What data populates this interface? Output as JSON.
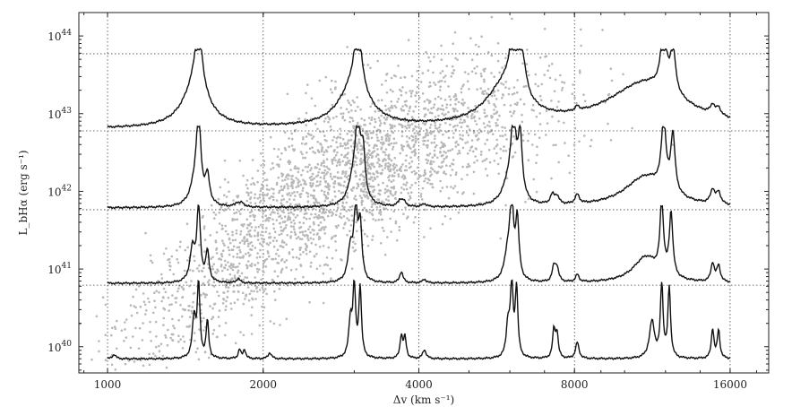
{
  "chart_data": {
    "type": "scatter",
    "title": "",
    "xlabel": "Δv (km s⁻¹)",
    "ylabel": "L_bHα (erg s⁻¹)",
    "x_scale": "log",
    "y_scale": "log",
    "xlim": [
      880,
      19000
    ],
    "ylim": [
      4.6e+39,
      2e+44
    ],
    "x_ticks": [
      1000,
      2000,
      4000,
      8000,
      16000
    ],
    "x_tick_labels": [
      "1000",
      "2000",
      "4000",
      "8000",
      "16000"
    ],
    "y_ticks": [
      1e+40,
      1e+41,
      1e+42,
      1e+43,
      1e+44
    ],
    "y_tick_labels": [
      {
        "base": "10",
        "exp": "40"
      },
      {
        "base": "10",
        "exp": "41"
      },
      {
        "base": "10",
        "exp": "42"
      },
      {
        "base": "10",
        "exp": "43"
      },
      {
        "base": "10",
        "exp": "44"
      }
    ],
    "grid": true,
    "scatter": {
      "color": "#b8b8b8",
      "description_points": [
        {
          "x": 1500,
          "y": 6e+40
        },
        {
          "x": 2000,
          "y": 3e+41
        },
        {
          "x": 2500,
          "y": 1e+42
        },
        {
          "x": 3000,
          "y": 2e+42
        },
        {
          "x": 3500,
          "y": 3e+42
        },
        {
          "x": 4000,
          "y": 5e+42
        },
        {
          "x": 5000,
          "y": 8e+42
        },
        {
          "x": 6000,
          "y": 1e+43
        },
        {
          "x": 8000,
          "y": 2e+43
        }
      ]
    },
    "spectra": [
      {
        "name": "",
        "ybase": 6.6e+39,
        "ytop": 6.2e+40,
        "peaks": [
          {
            "x": 1030,
            "h": 0.06,
            "w": 0.004
          },
          {
            "x": 1470,
            "h": 0.55,
            "w": 0.004
          },
          {
            "x": 1500,
            "h": 1.0,
            "w": 0.003
          },
          {
            "x": 1560,
            "h": 0.5,
            "w": 0.003
          },
          {
            "x": 1800,
            "h": 0.12,
            "w": 0.003
          },
          {
            "x": 1840,
            "h": 0.12,
            "w": 0.003
          },
          {
            "x": 2060,
            "h": 0.08,
            "w": 0.004
          },
          {
            "x": 2950,
            "h": 0.5,
            "w": 0.004
          },
          {
            "x": 3000,
            "h": 0.95,
            "w": 0.003
          },
          {
            "x": 3080,
            "h": 0.95,
            "w": 0.003
          },
          {
            "x": 3700,
            "h": 0.3,
            "w": 0.003
          },
          {
            "x": 3760,
            "h": 0.28,
            "w": 0.003
          },
          {
            "x": 4100,
            "h": 0.12,
            "w": 0.004
          },
          {
            "x": 5950,
            "h": 0.45,
            "w": 0.004
          },
          {
            "x": 6050,
            "h": 1.0,
            "w": 0.003
          },
          {
            "x": 6180,
            "h": 0.95,
            "w": 0.003
          },
          {
            "x": 7300,
            "h": 0.38,
            "w": 0.003
          },
          {
            "x": 7400,
            "h": 0.33,
            "w": 0.003
          },
          {
            "x": 8100,
            "h": 0.22,
            "w": 0.004
          },
          {
            "x": 11300,
            "h": 0.5,
            "w": 0.006
          },
          {
            "x": 11800,
            "h": 1.0,
            "w": 0.003
          },
          {
            "x": 12200,
            "h": 0.95,
            "w": 0.003
          },
          {
            "x": 14800,
            "h": 0.4,
            "w": 0.003
          },
          {
            "x": 15200,
            "h": 0.38,
            "w": 0.003
          }
        ]
      },
      {
        "name": "",
        "ybase": 6.2e+40,
        "ytop": 5.8e+41,
        "peaks": [
          {
            "x": 1460,
            "h": 0.45,
            "w": 0.006
          },
          {
            "x": 1500,
            "h": 1.0,
            "w": 0.004
          },
          {
            "x": 1560,
            "h": 0.4,
            "w": 0.004
          },
          {
            "x": 1790,
            "h": 0.06,
            "w": 0.004
          },
          {
            "x": 2950,
            "h": 0.45,
            "w": 0.006
          },
          {
            "x": 3020,
            "h": 0.95,
            "w": 0.004
          },
          {
            "x": 3080,
            "h": 0.75,
            "w": 0.004
          },
          {
            "x": 3700,
            "h": 0.15,
            "w": 0.004
          },
          {
            "x": 4100,
            "h": 0.05,
            "w": 0.004
          },
          {
            "x": 5950,
            "h": 0.4,
            "w": 0.008
          },
          {
            "x": 6050,
            "h": 0.95,
            "w": 0.004
          },
          {
            "x": 6200,
            "h": 0.8,
            "w": 0.004
          },
          {
            "x": 7300,
            "h": 0.2,
            "w": 0.004
          },
          {
            "x": 7400,
            "h": 0.18,
            "w": 0.004
          },
          {
            "x": 8100,
            "h": 0.1,
            "w": 0.004
          },
          {
            "x": 11000,
            "h": 0.35,
            "w": 0.03
          },
          {
            "x": 11800,
            "h": 0.95,
            "w": 0.004
          },
          {
            "x": 12300,
            "h": 0.85,
            "w": 0.004
          },
          {
            "x": 14800,
            "h": 0.25,
            "w": 0.004
          },
          {
            "x": 15200,
            "h": 0.22,
            "w": 0.004
          }
        ]
      },
      {
        "name": "",
        "ybase": 5.8e+41,
        "ytop": 6e+42,
        "peaks": [
          {
            "x": 1480,
            "h": 0.3,
            "w": 0.012
          },
          {
            "x": 1500,
            "h": 1.0,
            "w": 0.005
          },
          {
            "x": 1560,
            "h": 0.35,
            "w": 0.005
          },
          {
            "x": 1780,
            "h": 0.05,
            "w": 0.005
          },
          {
            "x": 1820,
            "h": 0.05,
            "w": 0.005
          },
          {
            "x": 3000,
            "h": 0.4,
            "w": 0.012
          },
          {
            "x": 3050,
            "h": 0.9,
            "w": 0.005
          },
          {
            "x": 3120,
            "h": 0.6,
            "w": 0.005
          },
          {
            "x": 3680,
            "h": 0.08,
            "w": 0.005
          },
          {
            "x": 3740,
            "h": 0.06,
            "w": 0.005
          },
          {
            "x": 4100,
            "h": 0.04,
            "w": 0.005
          },
          {
            "x": 6000,
            "h": 0.35,
            "w": 0.015
          },
          {
            "x": 6100,
            "h": 0.95,
            "w": 0.005
          },
          {
            "x": 6280,
            "h": 0.8,
            "w": 0.005
          },
          {
            "x": 7250,
            "h": 0.12,
            "w": 0.005
          },
          {
            "x": 7400,
            "h": 0.1,
            "w": 0.005
          },
          {
            "x": 8100,
            "h": 0.12,
            "w": 0.005
          },
          {
            "x": 11000,
            "h": 0.4,
            "w": 0.05
          },
          {
            "x": 11900,
            "h": 0.9,
            "w": 0.005
          },
          {
            "x": 12400,
            "h": 0.75,
            "w": 0.005
          },
          {
            "x": 14800,
            "h": 0.18,
            "w": 0.005
          },
          {
            "x": 15200,
            "h": 0.15,
            "w": 0.005
          }
        ]
      },
      {
        "name": "",
        "ybase": 6e+42,
        "ytop": 5.9e+43,
        "peaks": [
          {
            "x": 1480,
            "h": 0.55,
            "w": 0.03
          },
          {
            "x": 1500,
            "h": 0.85,
            "w": 0.008
          },
          {
            "x": 3000,
            "h": 0.55,
            "w": 0.035
          },
          {
            "x": 3050,
            "h": 0.85,
            "w": 0.008
          },
          {
            "x": 5900,
            "h": 0.55,
            "w": 0.045
          },
          {
            "x": 6100,
            "h": 0.8,
            "w": 0.008
          },
          {
            "x": 6350,
            "h": 0.45,
            "w": 0.008
          },
          {
            "x": 8100,
            "h": 0.06,
            "w": 0.005
          },
          {
            "x": 11000,
            "h": 0.6,
            "w": 0.09
          },
          {
            "x": 11900,
            "h": 0.85,
            "w": 0.006
          },
          {
            "x": 12400,
            "h": 0.6,
            "w": 0.006
          },
          {
            "x": 14800,
            "h": 0.12,
            "w": 0.005
          },
          {
            "x": 15200,
            "h": 0.1,
            "w": 0.005
          }
        ]
      }
    ],
    "separators_y": [
      6.2e+40,
      5.8e+41,
      6e+42,
      5.9e+43
    ]
  }
}
